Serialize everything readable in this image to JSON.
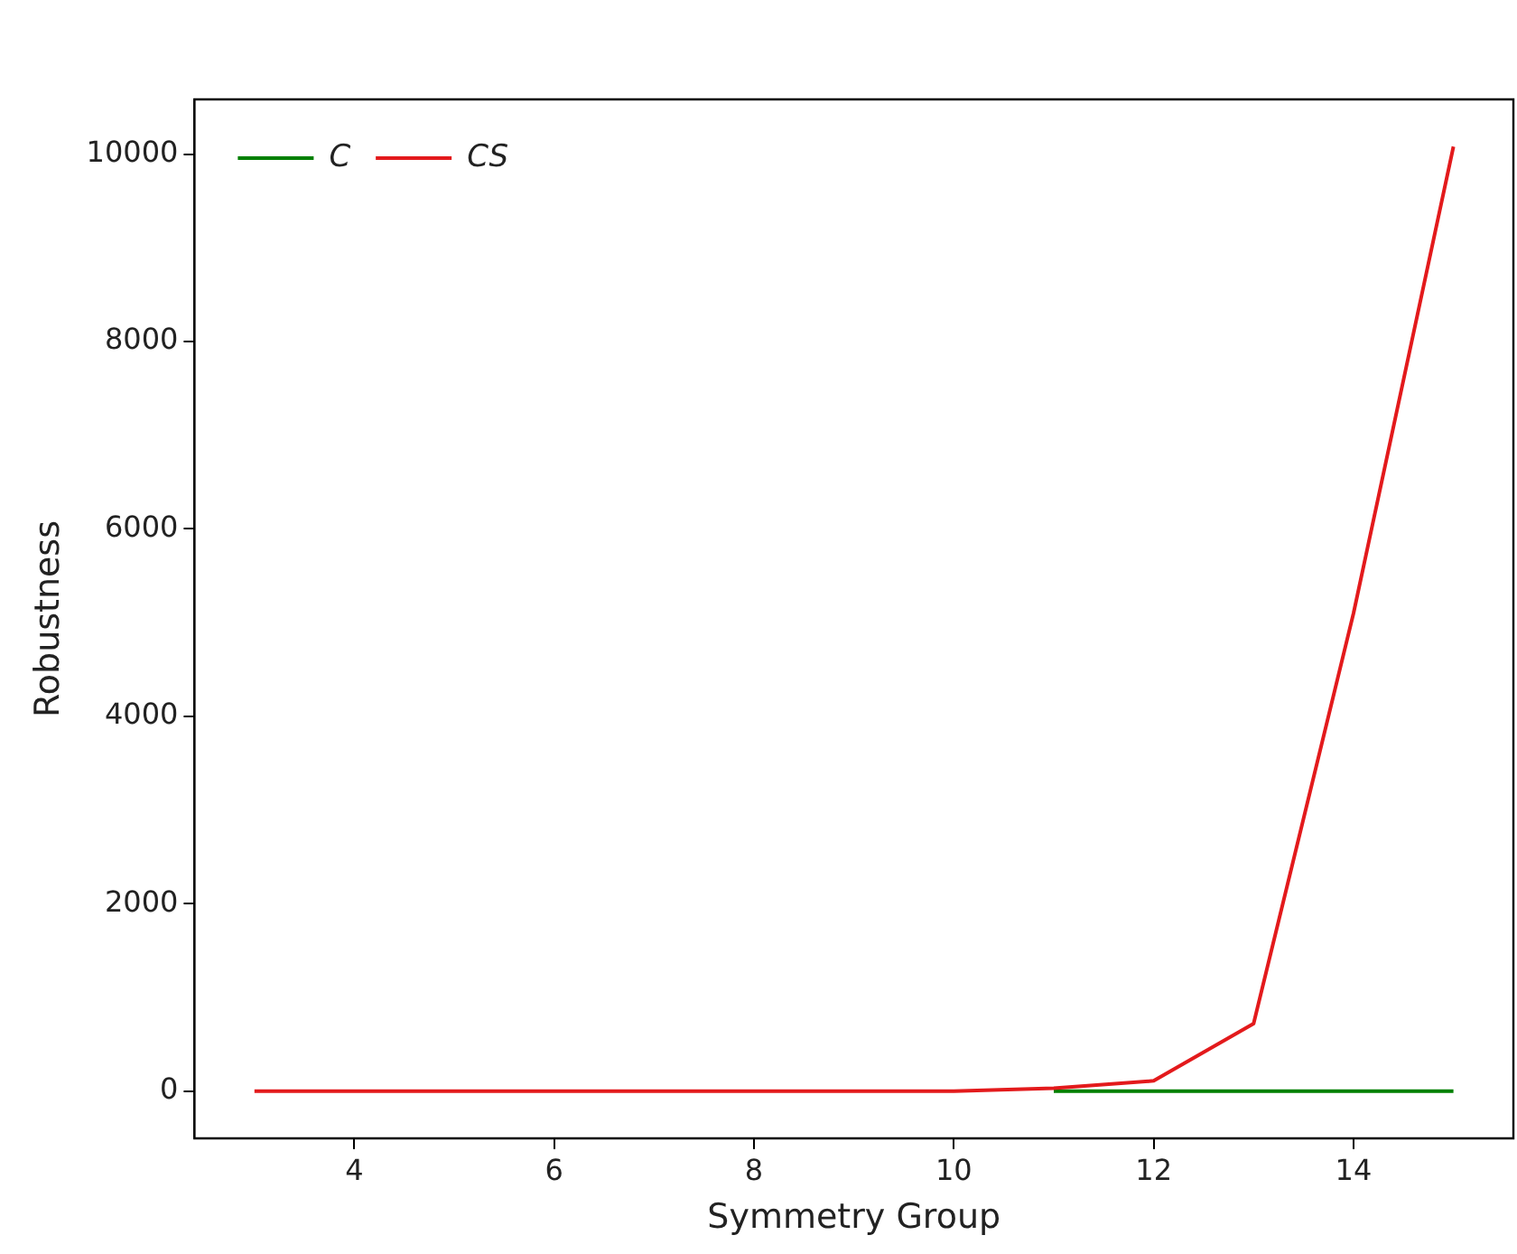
{
  "chart_data": {
    "type": "line",
    "xlabel": "Symmetry Group",
    "ylabel": "Robustness",
    "x": [
      3,
      4,
      5,
      6,
      7,
      8,
      9,
      10,
      11,
      12,
      13,
      14,
      15
    ],
    "series": [
      {
        "name": "C",
        "color": "#008000",
        "values": [
          null,
          null,
          null,
          null,
          null,
          null,
          null,
          null,
          0,
          0,
          0,
          0,
          0
        ]
      },
      {
        "name": "CS",
        "color": "#e31a1c",
        "values": [
          0,
          0,
          0,
          0,
          0,
          0,
          0,
          0,
          30,
          110,
          720,
          5100,
          10080
        ]
      }
    ],
    "xlim": [
      2.4,
      15.6
    ],
    "xticks": [
      4,
      6,
      8,
      10,
      12,
      14
    ],
    "ylim": [
      -504,
      10584
    ],
    "yticks": [
      0,
      2000,
      4000,
      6000,
      8000,
      10000
    ],
    "legend": "top left",
    "grid": false,
    "marker": "none",
    "line_style": "solid"
  }
}
